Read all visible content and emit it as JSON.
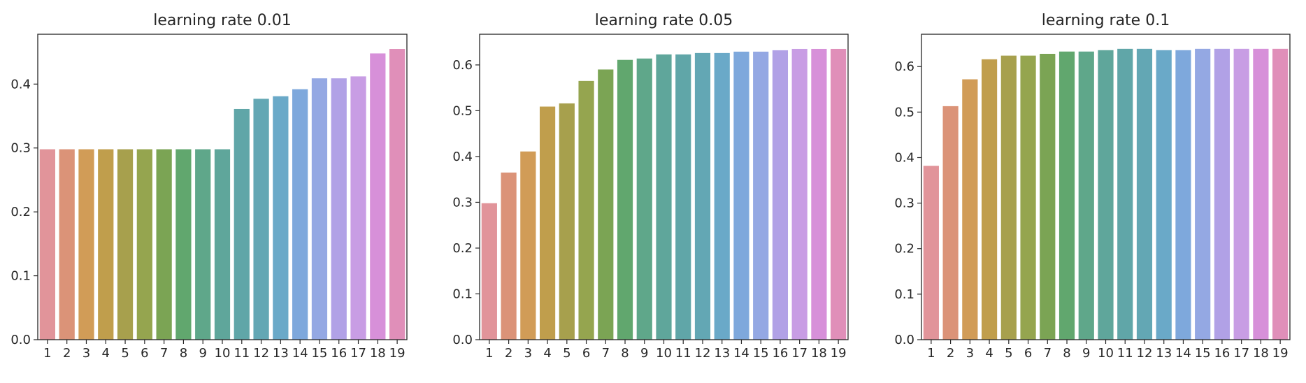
{
  "chart_data": [
    {
      "type": "bar",
      "title": "learning rate 0.01",
      "categories": [
        "1",
        "2",
        "3",
        "4",
        "5",
        "6",
        "7",
        "8",
        "9",
        "10",
        "11",
        "12",
        "13",
        "14",
        "15",
        "16",
        "17",
        "18",
        "19"
      ],
      "values": [
        0.298,
        0.298,
        0.298,
        0.298,
        0.298,
        0.298,
        0.298,
        0.298,
        0.298,
        0.298,
        0.361,
        0.377,
        0.381,
        0.392,
        0.409,
        0.409,
        0.412,
        0.448,
        0.455
      ],
      "yticks": [
        "0.0",
        "0.1",
        "0.2",
        "0.3",
        "0.4"
      ],
      "ylim": [
        0,
        0.478
      ]
    },
    {
      "type": "bar",
      "title": "learning rate 0.05",
      "categories": [
        "1",
        "2",
        "3",
        "4",
        "5",
        "6",
        "7",
        "8",
        "9",
        "10",
        "11",
        "12",
        "13",
        "14",
        "15",
        "16",
        "17",
        "18",
        "19"
      ],
      "values": [
        0.298,
        0.365,
        0.411,
        0.509,
        0.516,
        0.565,
        0.59,
        0.611,
        0.614,
        0.623,
        0.623,
        0.626,
        0.626,
        0.629,
        0.629,
        0.632,
        0.635,
        0.635,
        0.635
      ],
      "yticks": [
        "0.0",
        "0.1",
        "0.2",
        "0.3",
        "0.4",
        "0.5",
        "0.6"
      ],
      "ylim": [
        0,
        0.667
      ]
    },
    {
      "type": "bar",
      "title": "learning rate 0.1",
      "categories": [
        "1",
        "2",
        "3",
        "4",
        "5",
        "6",
        "7",
        "8",
        "9",
        "10",
        "11",
        "12",
        "13",
        "14",
        "15",
        "16",
        "17",
        "18",
        "19"
      ],
      "values": [
        0.382,
        0.513,
        0.572,
        0.616,
        0.624,
        0.624,
        0.628,
        0.633,
        0.633,
        0.636,
        0.639,
        0.639,
        0.636,
        0.636,
        0.639,
        0.639,
        0.639,
        0.639,
        0.639
      ],
      "yticks": [
        "0.0",
        "0.1",
        "0.2",
        "0.3",
        "0.4",
        "0.5",
        "0.6"
      ],
      "ylim": [
        0,
        0.671
      ]
    }
  ],
  "bar_colors": [
    "#e1949a",
    "#db9378",
    "#d19c57",
    "#c09e4c",
    "#a7a04d",
    "#95a54f",
    "#7ba454",
    "#61a76e",
    "#5fa78a",
    "#5fa69b",
    "#60a6a8",
    "#63a7b4",
    "#6aa9c8",
    "#7ea8dc",
    "#94a8e3",
    "#b1a1e6",
    "#c89de4",
    "#d790d9",
    "#e08fb9"
  ]
}
